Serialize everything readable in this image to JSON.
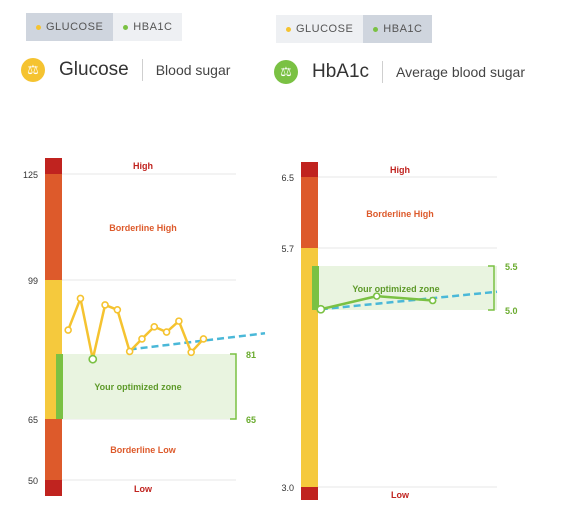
{
  "left": {
    "tabs": [
      {
        "label": "GLUCOSE",
        "active": true,
        "dot_color": "#f5c330"
      },
      {
        "label": "HBA1C",
        "active": false,
        "dot_color": "#7ac143"
      }
    ],
    "title": "Glucose",
    "subtitle": "Blood sugar",
    "icon": "scale-icon",
    "icon_color": "#f5c330"
  },
  "right": {
    "tabs": [
      {
        "label": "GLUCOSE",
        "active": false,
        "dot_color": "#f5c330"
      },
      {
        "label": "HBA1C",
        "active": true,
        "dot_color": "#7ac143"
      }
    ],
    "title": "HbA1c",
    "subtitle": "Average blood sugar",
    "icon": "scale-icon",
    "icon_color": "#7ac143"
  },
  "colors": {
    "high": "#c0231f",
    "borderline_high": "#dd5a2b",
    "normal": "#f5c93d",
    "optimized": "#7ac143",
    "zone_fill": "#e9f4e0",
    "line": "#f5c330",
    "trend": "#4ab8d8",
    "label_red": "#c0231f",
    "label_orange": "#dd5a2b",
    "label_green": "#6aab2e",
    "grid": "#e7e7e7"
  },
  "chart_data": [
    {
      "type": "line",
      "name": "Glucose",
      "yticks": [
        "125",
        "99",
        "65",
        "50"
      ],
      "bands": [
        {
          "label": "High"
        },
        {
          "label": "Borderline High"
        },
        {
          "label": "Your optimized zone",
          "range": [
            "65",
            "81"
          ]
        },
        {
          "label": "Borderline Low"
        },
        {
          "label": "Low"
        }
      ],
      "series": {
        "x": [
          0,
          1,
          2,
          3,
          4,
          5,
          6,
          7,
          8,
          9,
          10,
          11
        ],
        "values": [
          87.5,
          95.3,
          80.3,
          93.7,
          92.5,
          82.2,
          85.3,
          88.3,
          87.0,
          89.7,
          82.0,
          85.3
        ],
        "highlight_index": 2
      },
      "trend": {
        "from": [
          5,
          82.7
        ],
        "to": [
          16,
          86.7
        ]
      },
      "xlim": [
        -0.5,
        16
      ],
      "ylim": [
        47,
        129
      ]
    },
    {
      "type": "line",
      "name": "HbA1c",
      "yticks": [
        "6.5",
        "5.7",
        "3.0"
      ],
      "bands": [
        {
          "label": "High"
        },
        {
          "label": "Borderline High"
        },
        {
          "label": "Your optimized zone",
          "range": [
            "5.0",
            "5.5"
          ]
        },
        {
          "label": "Low"
        }
      ],
      "series": {
        "x": [
          0,
          1,
          2
        ],
        "values": [
          5.0,
          5.15,
          5.1
        ],
        "highlight_index": 0
      },
      "trend": {
        "from": [
          0,
          5.0
        ],
        "to": [
          3.15,
          5.2
        ]
      },
      "xlim": [
        -0.05,
        3.15
      ],
      "ylim": [
        2.95,
        6.6
      ]
    }
  ]
}
